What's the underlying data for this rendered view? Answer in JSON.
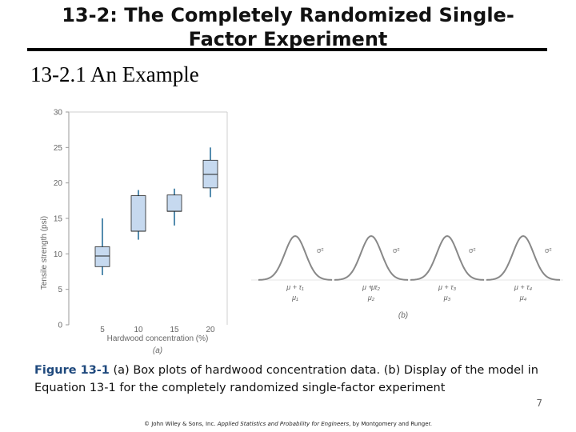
{
  "slide": {
    "title": "13-2: The Completely Randomized Single-Factor Experiment",
    "subtitle": "13-2.1 An Example",
    "caption_label": "Figure 13-1",
    "caption_text": "(a) Box plots of hardwood concentration data. (b) Display of the model in Equation 13-1 for the completely randomized single-factor experiment",
    "page_number": "7",
    "footer_prefix": "© John Wiley & Sons, Inc.  ",
    "footer_book": "Applied Statistics and Probability for Engineers",
    "footer_suffix": ", by Montgomery and Runger."
  },
  "colors": {
    "box_fill": "#c6d9ef",
    "box_stroke": "#222222",
    "whisker": "#2a6f9a",
    "curve": "#888888",
    "axis": "#999999",
    "caption_label": "#1f497d"
  },
  "chart_data": [
    {
      "type": "box",
      "panel_label": "(a)",
      "xlabel": "Hardwood concentration (%)",
      "ylabel": "Tensile strength (psi)",
      "ylim": [
        0,
        30
      ],
      "yticks": [
        0,
        5,
        10,
        15,
        20,
        25,
        30
      ],
      "categories": [
        "5",
        "10",
        "15",
        "20"
      ],
      "boxes": [
        {
          "whisker_low": 7,
          "q1": 8.2,
          "median": 9.7,
          "q3": 11,
          "whisker_high": 15
        },
        {
          "whisker_low": 12,
          "q1": 13.2,
          "median": 13.2,
          "q3": 18.2,
          "whisker_high": 19
        },
        {
          "whisker_low": 14,
          "q1": 16,
          "median": 16,
          "q3": 18.3,
          "whisker_high": 19.2
        },
        {
          "whisker_low": 18,
          "q1": 19.3,
          "median": 21.2,
          "q3": 23.2,
          "whisker_high": 25
        }
      ],
      "grid": false
    },
    {
      "type": "distribution",
      "panel_label": "(b)",
      "curve_label": "σ²",
      "mu_label": "μ",
      "means_labels": [
        "μ + τ₁",
        "μ + τ₂",
        "μ + τ₃",
        "μ + τ₄"
      ],
      "group_means": [
        "μ₁",
        "μ₂",
        "μ₃",
        "μ₄"
      ],
      "curve_count": 4
    }
  ]
}
